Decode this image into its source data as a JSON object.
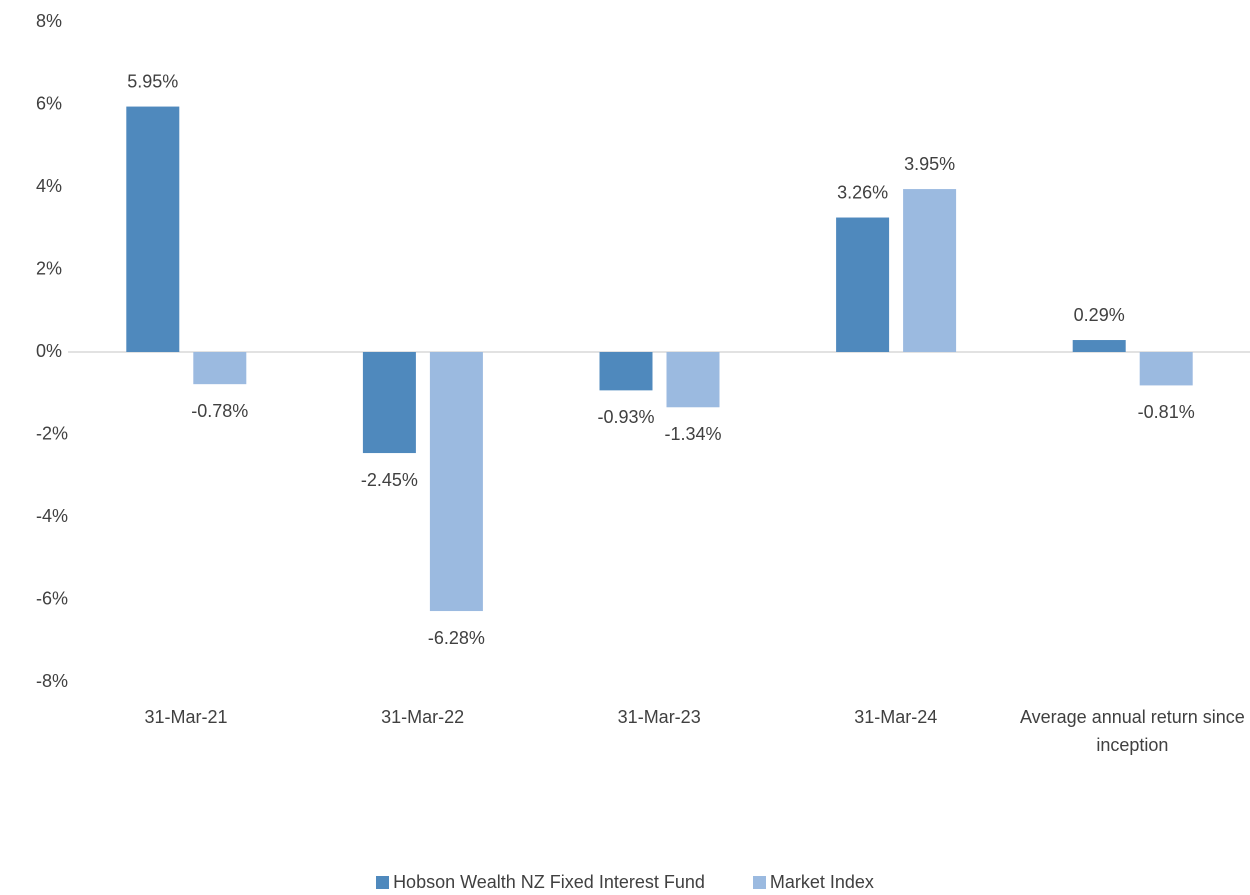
{
  "chart_data": {
    "type": "bar",
    "categories": [
      "31-Mar-21",
      "31-Mar-22",
      "31-Mar-23",
      "31-Mar-24",
      "Average annual return since inception"
    ],
    "series": [
      {
        "name": "Hobson Wealth NZ Fixed Interest Fund",
        "color": "#4f89bd",
        "values": [
          5.95,
          -2.45,
          -0.93,
          3.26,
          0.29
        ],
        "value_labels": [
          "5.95%",
          "-2.45%",
          "-0.93%",
          "3.26%",
          "0.29%"
        ]
      },
      {
        "name": "Market Index",
        "color": "#9bbae0",
        "values": [
          -0.78,
          -6.28,
          -1.34,
          3.95,
          -0.81
        ],
        "value_labels": [
          "-0.78%",
          "-6.28%",
          "-1.34%",
          "3.95%",
          "-0.81%"
        ]
      }
    ],
    "ylim": [
      -8,
      8
    ],
    "yticks": [
      {
        "value": -8,
        "label": "-8%"
      },
      {
        "value": -6,
        "label": "-6%"
      },
      {
        "value": -4,
        "label": "-4%"
      },
      {
        "value": -2,
        "label": "-2%"
      },
      {
        "value": 0,
        "label": "0%"
      },
      {
        "value": 2,
        "label": "2%"
      },
      {
        "value": 4,
        "label": "4%"
      },
      {
        "value": 6,
        "label": "6%"
      },
      {
        "value": 8,
        "label": "8%"
      }
    ],
    "grid": false,
    "legend": "bottom"
  }
}
